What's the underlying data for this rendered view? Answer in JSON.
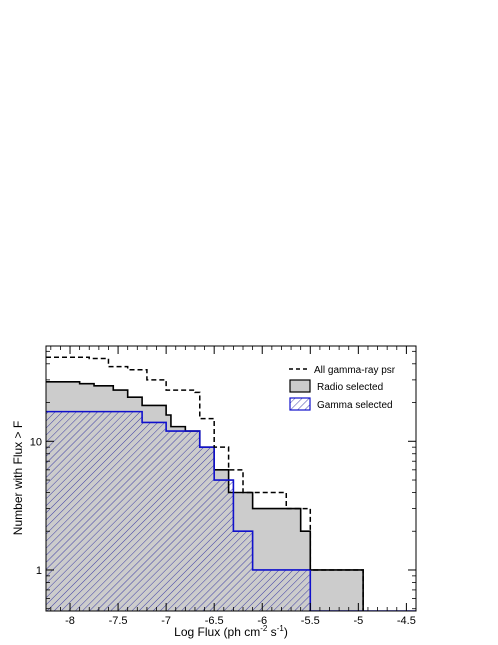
{
  "chart_data": {
    "type": "step",
    "xlabel": "Log Flux  (ph cm",
    "xlabel_sup1": "-2",
    "xlabel_mid": " s",
    "xlabel_sup2": "-1",
    "xlabel_end": ")",
    "ylabel": "Number with Flux > F",
    "xlim": [
      -8.25,
      -4.4
    ],
    "ylim": [
      0.48,
      55
    ],
    "yscale": "log",
    "x_ticks": [
      -8,
      -7.5,
      -7,
      -6.5,
      -6,
      -5.5,
      -5,
      -4.5
    ],
    "x_tick_labels": [
      "-8",
      "-7.5",
      "-7",
      "-6.5",
      "-6",
      "-5.5",
      "-5",
      "-4.5"
    ],
    "y_ticks": [
      1,
      10
    ],
    "y_tick_labels": [
      "1",
      "10"
    ],
    "legend_position": "top-right",
    "series": [
      {
        "name": "All gamma-ray psr",
        "style": "dashed",
        "color": "#000000",
        "steps": [
          [
            -8.25,
            45
          ],
          [
            -8.0,
            45
          ],
          [
            -7.8,
            44
          ],
          [
            -7.6,
            38
          ],
          [
            -7.4,
            36
          ],
          [
            -7.2,
            30
          ],
          [
            -7.0,
            25
          ],
          [
            -6.95,
            25
          ],
          [
            -6.7,
            24
          ],
          [
            -6.65,
            15
          ],
          [
            -6.5,
            9
          ],
          [
            -6.35,
            6
          ],
          [
            -6.2,
            4
          ],
          [
            -5.85,
            4
          ],
          [
            -5.75,
            3
          ],
          [
            -5.5,
            1
          ],
          [
            -5.0,
            1
          ],
          [
            -4.95,
            1
          ]
        ]
      },
      {
        "name": "Radio selected",
        "style": "solid-filled",
        "color": "#000000",
        "fill": "#cccccc",
        "steps": [
          [
            -8.25,
            29
          ],
          [
            -7.9,
            28
          ],
          [
            -7.75,
            27
          ],
          [
            -7.55,
            25
          ],
          [
            -7.4,
            22
          ],
          [
            -7.25,
            19
          ],
          [
            -7.0,
            16
          ],
          [
            -6.95,
            13
          ],
          [
            -6.8,
            12
          ],
          [
            -6.65,
            9
          ],
          [
            -6.5,
            6
          ],
          [
            -6.35,
            4
          ],
          [
            -6.25,
            4
          ],
          [
            -6.1,
            3
          ],
          [
            -5.85,
            3
          ],
          [
            -5.6,
            2
          ],
          [
            -5.5,
            1
          ],
          [
            -5.0,
            1
          ],
          [
            -4.95,
            1
          ]
        ]
      },
      {
        "name": "Gamma selected",
        "style": "solid-hatched",
        "color": "#1010cc",
        "steps": [
          [
            -8.25,
            17
          ],
          [
            -7.25,
            14
          ],
          [
            -7.1,
            14
          ],
          [
            -7.0,
            12
          ],
          [
            -6.8,
            12
          ],
          [
            -6.65,
            9
          ],
          [
            -6.5,
            5
          ],
          [
            -6.3,
            2
          ],
          [
            -6.15,
            2
          ],
          [
            -6.1,
            1
          ],
          [
            -5.6,
            1
          ],
          [
            -5.5,
            0.48
          ],
          [
            -4.95,
            0.48
          ],
          [
            -4.4,
            0.48
          ]
        ]
      }
    ]
  }
}
